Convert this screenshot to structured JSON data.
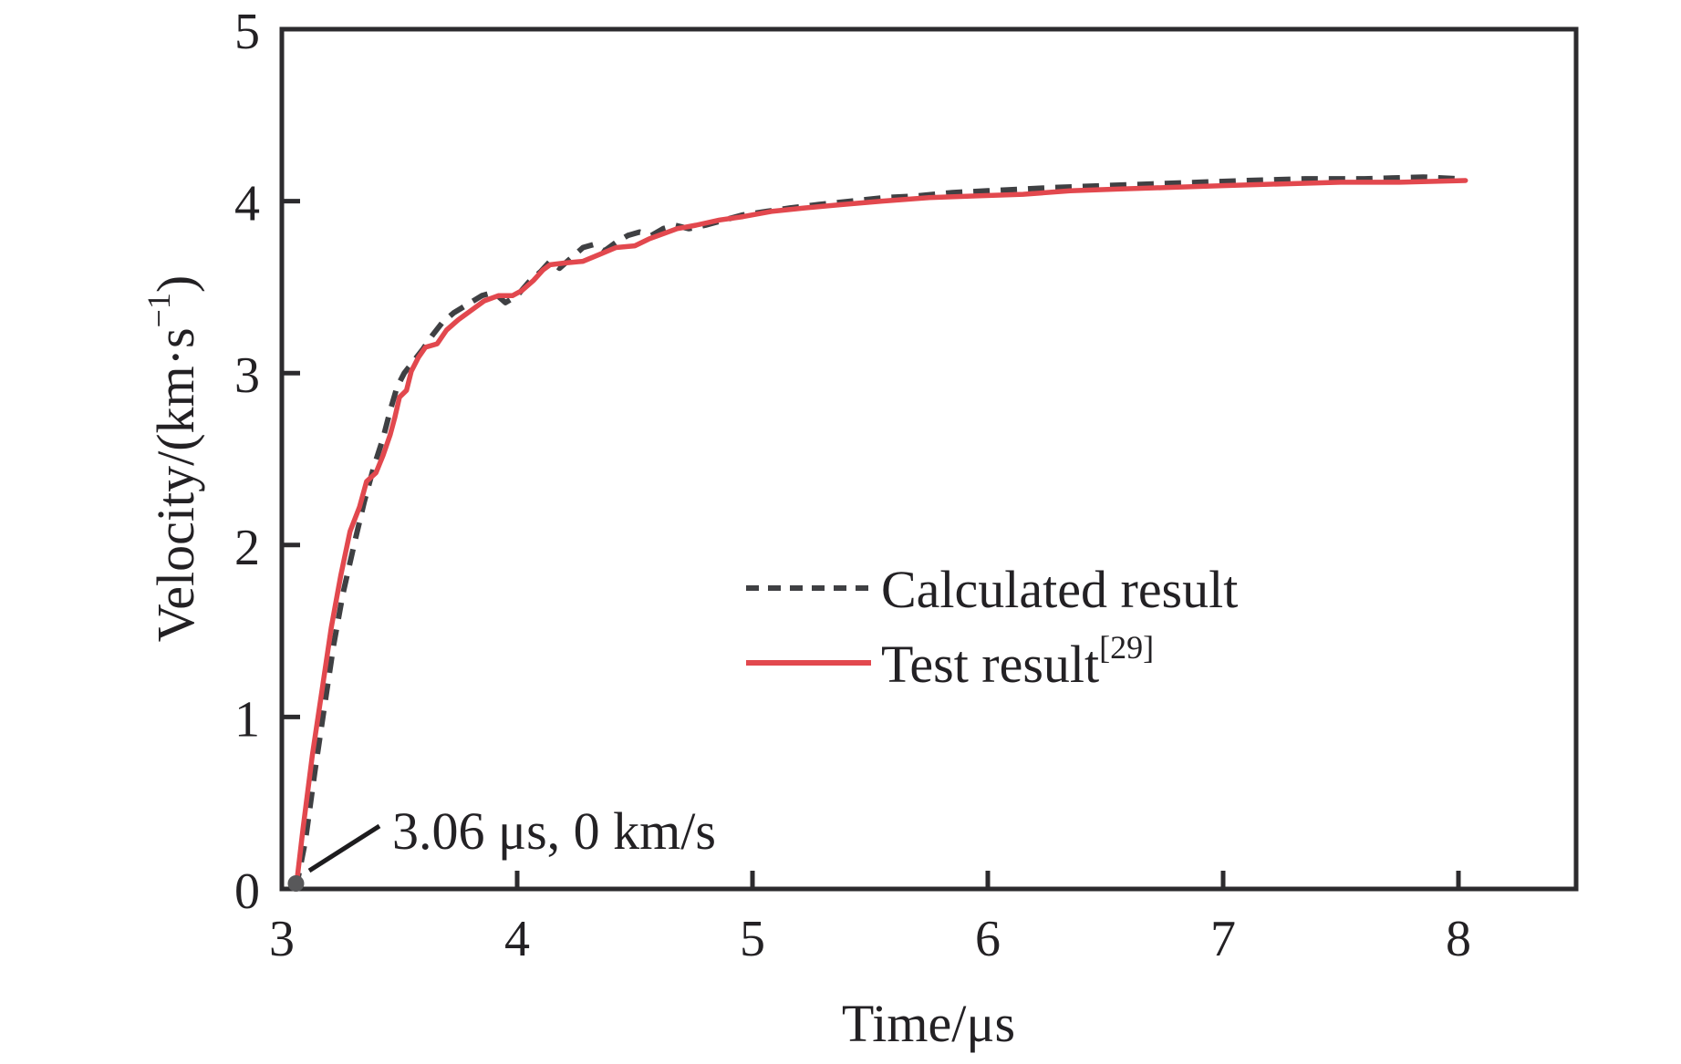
{
  "page": {
    "background_color": "#ffffff"
  },
  "chart_data": {
    "type": "line",
    "title": "",
    "xlabel": "Time/μs",
    "ylabel": "Velocity/(km·s⁻¹)",
    "ylabel_parts": {
      "pre": "Velocity/(km·s",
      "sup": "−1",
      "post": ")"
    },
    "xlim": [
      3,
      8.5
    ],
    "ylim": [
      0,
      5
    ],
    "x_ticks": [
      3,
      4,
      5,
      6,
      7,
      8
    ],
    "y_ticks": [
      0,
      1,
      2,
      3,
      4,
      5
    ],
    "grid": false,
    "legend_position": "center-right",
    "axis_color": "#2c2b2e",
    "text_color": "#232124",
    "series": [
      {
        "name": "Calculated result",
        "name_sup": "",
        "style": "dashed",
        "color": "#3f4043",
        "points": [
          [
            3.06,
            0
          ],
          [
            3.1,
            0.28
          ],
          [
            3.14,
            0.68
          ],
          [
            3.18,
            1.05
          ],
          [
            3.22,
            1.42
          ],
          [
            3.26,
            1.72
          ],
          [
            3.31,
            2.02
          ],
          [
            3.35,
            2.25
          ],
          [
            3.39,
            2.45
          ],
          [
            3.43,
            2.62
          ],
          [
            3.46,
            2.78
          ],
          [
            3.49,
            2.92
          ],
          [
            3.52,
            3.0
          ],
          [
            3.56,
            3.07
          ],
          [
            3.6,
            3.14
          ],
          [
            3.64,
            3.22
          ],
          [
            3.68,
            3.29
          ],
          [
            3.73,
            3.35
          ],
          [
            3.79,
            3.4
          ],
          [
            3.85,
            3.45
          ],
          [
            3.9,
            3.47
          ],
          [
            3.95,
            3.41
          ],
          [
            4.0,
            3.45
          ],
          [
            4.05,
            3.53
          ],
          [
            4.1,
            3.59
          ],
          [
            4.14,
            3.65
          ],
          [
            4.18,
            3.61
          ],
          [
            4.23,
            3.67
          ],
          [
            4.28,
            3.73
          ],
          [
            4.33,
            3.75
          ],
          [
            4.37,
            3.71
          ],
          [
            4.42,
            3.76
          ],
          [
            4.47,
            3.8
          ],
          [
            4.52,
            3.82
          ],
          [
            4.57,
            3.8
          ],
          [
            4.62,
            3.84
          ],
          [
            4.67,
            3.86
          ],
          [
            4.73,
            3.84
          ],
          [
            4.8,
            3.86
          ],
          [
            4.88,
            3.89
          ],
          [
            4.96,
            3.92
          ],
          [
            5.06,
            3.94
          ],
          [
            5.16,
            3.96
          ],
          [
            5.28,
            3.98
          ],
          [
            5.42,
            4.0
          ],
          [
            5.56,
            4.02
          ],
          [
            5.7,
            4.03
          ],
          [
            5.85,
            4.05
          ],
          [
            6.0,
            4.06
          ],
          [
            6.15,
            4.07
          ],
          [
            6.3,
            4.08
          ],
          [
            6.5,
            4.09
          ],
          [
            6.7,
            4.1
          ],
          [
            6.9,
            4.11
          ],
          [
            7.1,
            4.12
          ],
          [
            7.35,
            4.13
          ],
          [
            7.6,
            4.13
          ],
          [
            7.85,
            4.14
          ],
          [
            8.0,
            4.13
          ]
        ]
      },
      {
        "name": "Test result",
        "name_sup": "[29]",
        "style": "solid",
        "color": "#e2484e",
        "points": [
          [
            3.06,
            0
          ],
          [
            3.09,
            0.35
          ],
          [
            3.13,
            0.78
          ],
          [
            3.17,
            1.15
          ],
          [
            3.21,
            1.52
          ],
          [
            3.25,
            1.82
          ],
          [
            3.29,
            2.08
          ],
          [
            3.33,
            2.22
          ],
          [
            3.36,
            2.37
          ],
          [
            3.4,
            2.42
          ],
          [
            3.43,
            2.52
          ],
          [
            3.46,
            2.64
          ],
          [
            3.48,
            2.74
          ],
          [
            3.5,
            2.86
          ],
          [
            3.53,
            2.9
          ],
          [
            3.55,
            3.01
          ],
          [
            3.58,
            3.09
          ],
          [
            3.61,
            3.15
          ],
          [
            3.66,
            3.17
          ],
          [
            3.7,
            3.25
          ],
          [
            3.75,
            3.31
          ],
          [
            3.8,
            3.36
          ],
          [
            3.86,
            3.42
          ],
          [
            3.92,
            3.45
          ],
          [
            3.98,
            3.45
          ],
          [
            4.02,
            3.48
          ],
          [
            4.07,
            3.54
          ],
          [
            4.11,
            3.6
          ],
          [
            4.14,
            3.63
          ],
          [
            4.2,
            3.64
          ],
          [
            4.28,
            3.65
          ],
          [
            4.35,
            3.69
          ],
          [
            4.42,
            3.73
          ],
          [
            4.5,
            3.74
          ],
          [
            4.56,
            3.78
          ],
          [
            4.62,
            3.81
          ],
          [
            4.68,
            3.84
          ],
          [
            4.76,
            3.86
          ],
          [
            4.86,
            3.89
          ],
          [
            4.96,
            3.91
          ],
          [
            5.08,
            3.94
          ],
          [
            5.22,
            3.96
          ],
          [
            5.38,
            3.98
          ],
          [
            5.55,
            4.0
          ],
          [
            5.75,
            4.02
          ],
          [
            5.95,
            4.03
          ],
          [
            6.15,
            4.04
          ],
          [
            6.35,
            4.06
          ],
          [
            6.55,
            4.07
          ],
          [
            6.78,
            4.08
          ],
          [
            7.0,
            4.09
          ],
          [
            7.25,
            4.1
          ],
          [
            7.5,
            4.11
          ],
          [
            7.75,
            4.11
          ],
          [
            8.03,
            4.12
          ]
        ]
      }
    ],
    "annotation": {
      "label": "3.06 μs, 0 km/s",
      "point": [
        3.06,
        0
      ],
      "marker_color": "#58585a",
      "leader_color": "#1d1c1e"
    }
  }
}
